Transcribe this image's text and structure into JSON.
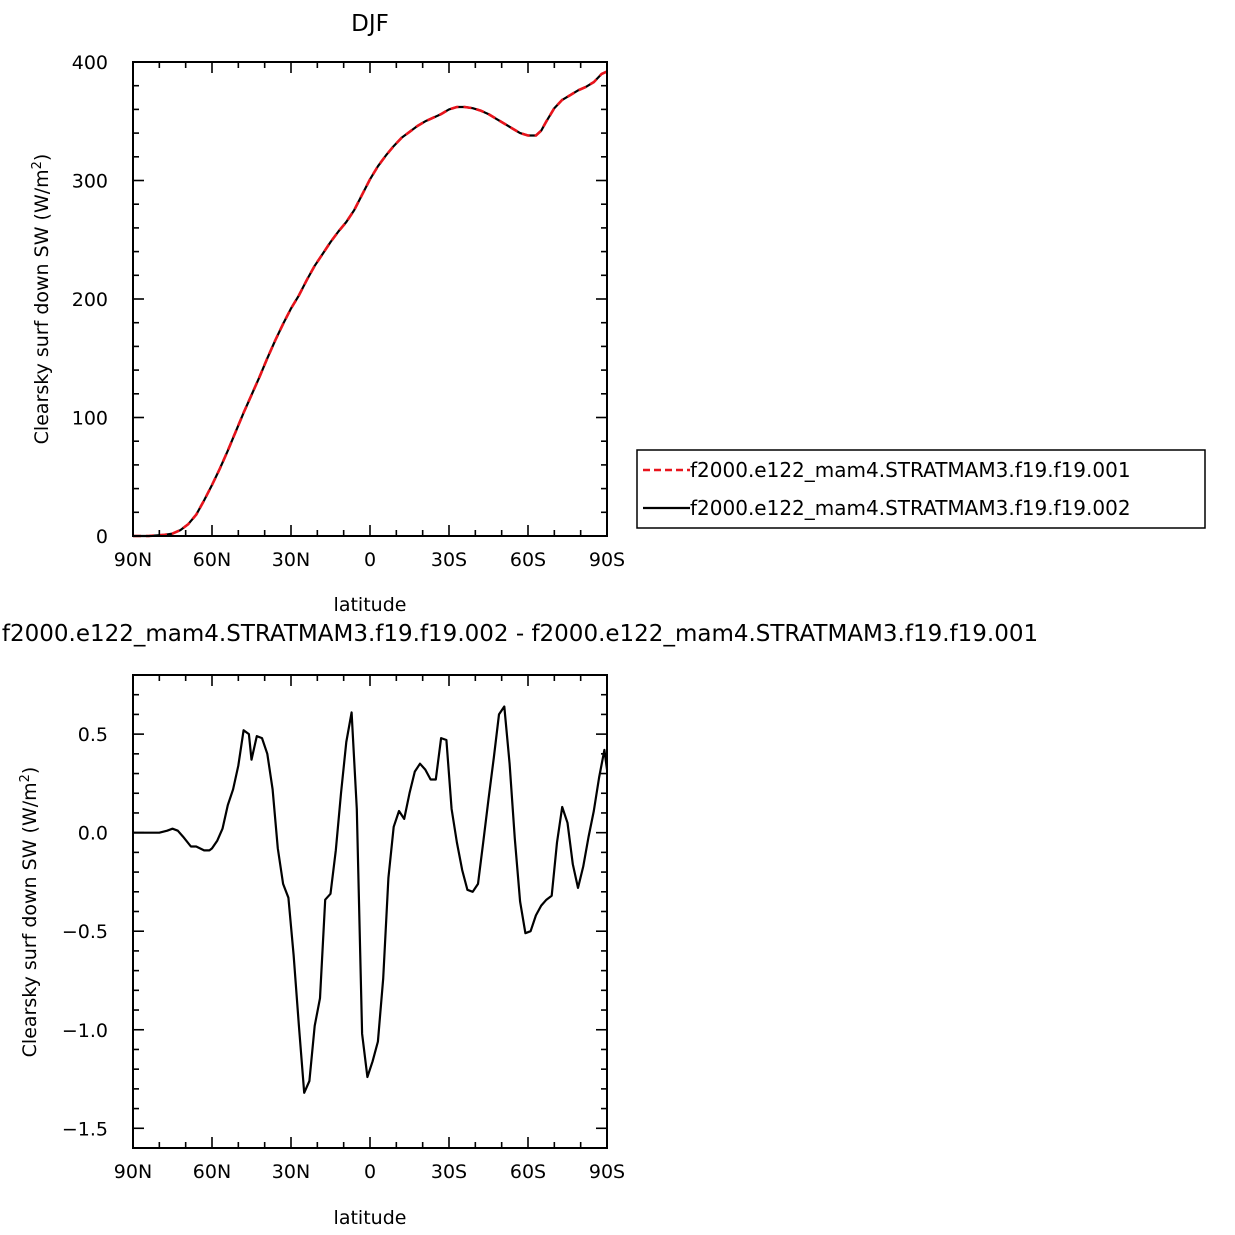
{
  "chart_data": [
    {
      "type": "line",
      "title": "DJF",
      "xlabel": "latitude",
      "ylabel": "Clearsky surf down SW (W/m",
      "ylabel_sup": "2",
      "ylabel_end": ")",
      "xlim": [
        90,
        -90
      ],
      "ylim": [
        0,
        400
      ],
      "x_ticks": [
        {
          "value": 90,
          "label": "90N"
        },
        {
          "value": 60,
          "label": "60N"
        },
        {
          "value": 30,
          "label": "30N"
        },
        {
          "value": 0,
          "label": "0"
        },
        {
          "value": -30,
          "label": "30S"
        },
        {
          "value": -60,
          "label": "60S"
        },
        {
          "value": -90,
          "label": "90S"
        }
      ],
      "y_ticks": [
        {
          "value": 0,
          "label": "0"
        },
        {
          "value": 100,
          "label": "100"
        },
        {
          "value": 200,
          "label": "200"
        },
        {
          "value": 300,
          "label": "300"
        },
        {
          "value": 400,
          "label": "400"
        }
      ],
      "legend_position": "right",
      "series": [
        {
          "name": "f2000.e122_mam4.STRATMAM3.f19.f19.001",
          "color": "#e8141c",
          "dash": true,
          "x": [
            90,
            84,
            78,
            75,
            72,
            69,
            66,
            63,
            60,
            57,
            54,
            51,
            48,
            45,
            42,
            39,
            36,
            33,
            30,
            27,
            24,
            21,
            18,
            15,
            12,
            9,
            6,
            3,
            0,
            -3,
            -6,
            -9,
            -12,
            -15,
            -18,
            -21,
            -24,
            -27,
            -30,
            -33,
            -36,
            -39,
            -42,
            -45,
            -48,
            -51,
            -54,
            -57,
            -60,
            -63,
            -65,
            -67,
            -70,
            -73,
            -76,
            -79,
            -82,
            -85,
            -88,
            -90
          ],
          "y": [
            0,
            0,
            1,
            2,
            5,
            10,
            18,
            30,
            43,
            57,
            72,
            88,
            104,
            119,
            134,
            150,
            165,
            179,
            192,
            203,
            216,
            228,
            238,
            248,
            257,
            265,
            275,
            288,
            301,
            312,
            321,
            329,
            336,
            341,
            346,
            350,
            353,
            356,
            360,
            362,
            362,
            361,
            359,
            356,
            352,
            348,
            344,
            340,
            338,
            338,
            342,
            350,
            361,
            368,
            372,
            376,
            379,
            383,
            390,
            392
          ]
        },
        {
          "name": "f2000.e122_mam4.STRATMAM3.f19.f19.002",
          "color": "#000000",
          "dash": false,
          "x": [
            90,
            84,
            78,
            75,
            72,
            69,
            66,
            63,
            60,
            57,
            54,
            51,
            48,
            45,
            42,
            39,
            36,
            33,
            30,
            27,
            24,
            21,
            18,
            15,
            12,
            9,
            6,
            3,
            0,
            -3,
            -6,
            -9,
            -12,
            -15,
            -18,
            -21,
            -24,
            -27,
            -30,
            -33,
            -36,
            -39,
            -42,
            -45,
            -48,
            -51,
            -54,
            -57,
            -60,
            -63,
            -65,
            -67,
            -70,
            -73,
            -76,
            -79,
            -82,
            -85,
            -88,
            -90
          ],
          "y": [
            0,
            0,
            1,
            2,
            5,
            10,
            18,
            30,
            43,
            57,
            72,
            88,
            104,
            119,
            134,
            150,
            165,
            179,
            192,
            203,
            216,
            228,
            238,
            248,
            257,
            265,
            275,
            288,
            301,
            312,
            321,
            329,
            336,
            341,
            346,
            350,
            353,
            356,
            360,
            362,
            362,
            361,
            359,
            356,
            352,
            348,
            344,
            340,
            338,
            338,
            342,
            350,
            361,
            368,
            372,
            376,
            379,
            383,
            390,
            392
          ]
        }
      ]
    },
    {
      "type": "line",
      "title": "f2000.e122_mam4.STRATMAM3.f19.f19.002 - f2000.e122_mam4.STRATMAM3.f19.f19.001",
      "xlabel": "latitude",
      "ylabel": "Clearsky surf down SW (W/m",
      "ylabel_sup": "2",
      "ylabel_end": ")",
      "xlim": [
        90,
        -90
      ],
      "ylim": [
        -1.6,
        0.8
      ],
      "x_ticks": [
        {
          "value": 90,
          "label": "90N"
        },
        {
          "value": 60,
          "label": "60N"
        },
        {
          "value": 30,
          "label": "30N"
        },
        {
          "value": 0,
          "label": "0"
        },
        {
          "value": -30,
          "label": "30S"
        },
        {
          "value": -60,
          "label": "60S"
        },
        {
          "value": -90,
          "label": "90S"
        }
      ],
      "y_ticks": [
        {
          "value": -1.5,
          "label": "−1.5"
        },
        {
          "value": -1.0,
          "label": "−1.0"
        },
        {
          "value": -0.5,
          "label": "−0.5"
        },
        {
          "value": 0.0,
          "label": "0.0"
        },
        {
          "value": 0.5,
          "label": "0.5"
        }
      ],
      "series": [
        {
          "color": "#000000",
          "x": [
            90,
            84,
            80,
            77,
            75,
            73,
            71,
            68,
            66,
            63,
            61,
            60,
            58,
            56,
            54,
            52,
            50,
            48,
            46,
            45,
            43,
            41,
            39,
            37,
            35,
            33,
            31,
            29,
            27,
            25,
            23,
            21,
            19,
            17,
            15,
            13,
            11,
            9,
            7,
            5,
            3,
            1,
            -1,
            -3,
            -5,
            -7,
            -9,
            -11,
            -13,
            -15,
            -17,
            -19,
            -21,
            -23,
            -25,
            -27,
            -29,
            -31,
            -33,
            -35,
            -37,
            -39,
            -41,
            -43,
            -45,
            -47,
            -49,
            -51,
            -53,
            -55,
            -57,
            -59,
            -61,
            -63,
            -65,
            -67,
            -69,
            -71,
            -73,
            -75,
            -77,
            -79,
            -81,
            -83,
            -85,
            -87,
            -89,
            -90
          ],
          "y": [
            0,
            0,
            0,
            0.01,
            0.02,
            0.01,
            -0.02,
            -0.07,
            -0.07,
            -0.09,
            -0.09,
            -0.08,
            -0.04,
            0.02,
            0.14,
            0.22,
            0.34,
            0.52,
            0.5,
            0.37,
            0.49,
            0.48,
            0.4,
            0.22,
            -0.08,
            -0.26,
            -0.33,
            -0.62,
            -0.98,
            -1.32,
            -1.26,
            -0.98,
            -0.84,
            -0.34,
            -0.31,
            -0.09,
            0.2,
            0.46,
            0.61,
            0.12,
            -1.02,
            -1.24,
            -1.16,
            -1.06,
            -0.74,
            -0.23,
            0.03,
            0.11,
            0.07,
            0.2,
            0.31,
            0.35,
            0.32,
            0.27,
            0.27,
            0.48,
            0.47,
            0.12,
            -0.05,
            -0.19,
            -0.29,
            -0.3,
            -0.26,
            -0.05,
            0.17,
            0.38,
            0.6,
            0.64,
            0.35,
            -0.03,
            -0.35,
            -0.51,
            -0.5,
            -0.42,
            -0.37,
            -0.34,
            -0.32,
            -0.05,
            0.13,
            0.05,
            -0.16,
            -0.28,
            -0.17,
            -0.02,
            0.11,
            0.28,
            0.42,
            0.32
          ]
        }
      ]
    }
  ]
}
